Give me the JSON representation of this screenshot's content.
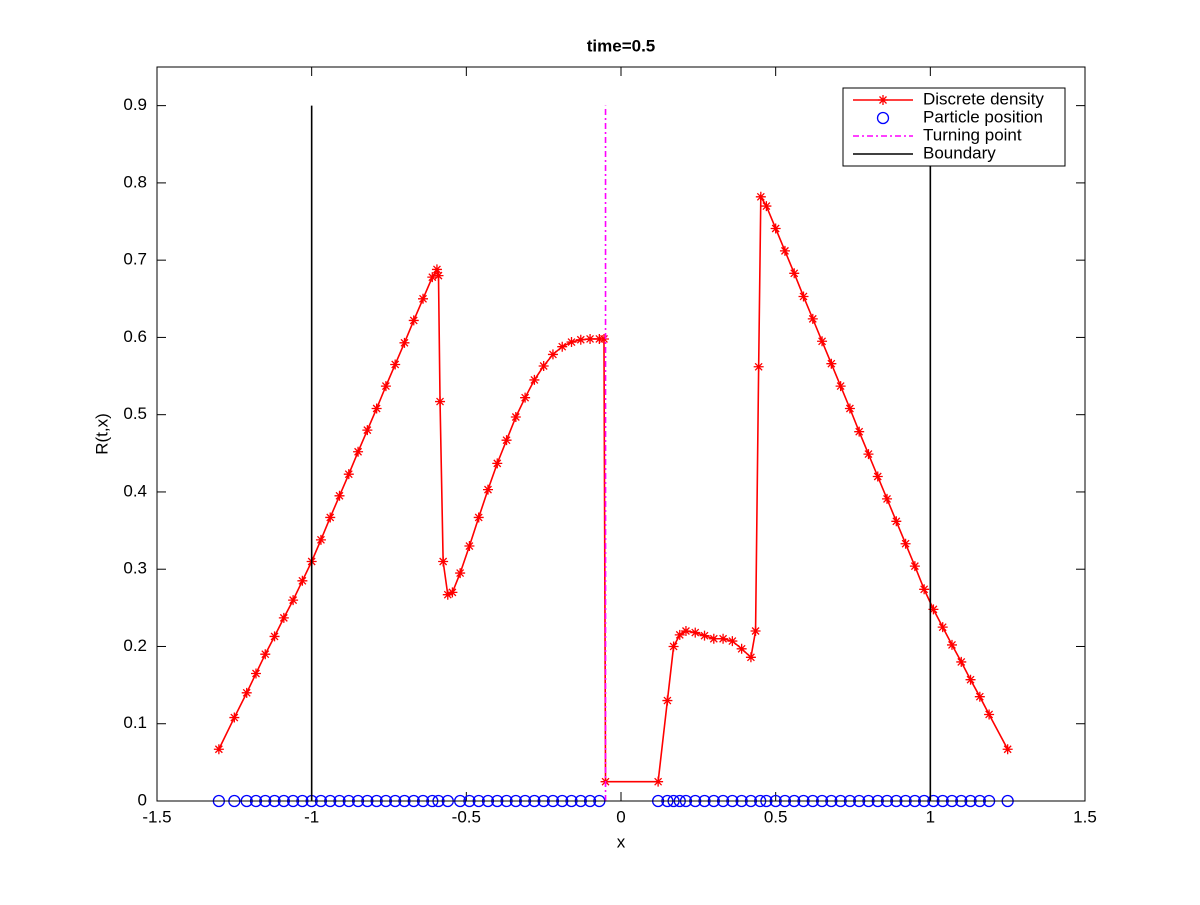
{
  "chart_data": {
    "type": "line",
    "title": "time=0.5",
    "x_label": "x",
    "y_label": "R(t,x)",
    "xlim": [
      -1.5,
      1.5
    ],
    "xticks": [
      -1.5,
      -1,
      -0.5,
      0,
      0.5,
      1,
      1.5
    ],
    "ylim": [
      0,
      0.95
    ],
    "yticks": [
      0,
      0.1,
      0.2,
      0.3,
      0.4,
      0.5,
      0.6,
      0.7,
      0.8,
      0.9
    ],
    "legend": "upper right",
    "grid": false,
    "series": [
      {
        "name": "Discrete density",
        "color": "#ff0000",
        "marker": "star",
        "linestyle": "solid",
        "x": [
          -1.3,
          -1.25,
          -1.21,
          -1.18,
          -1.15,
          -1.12,
          -1.09,
          -1.06,
          -1.03,
          -1.0,
          -0.97,
          -0.94,
          -0.91,
          -0.88,
          -0.85,
          -0.82,
          -0.79,
          -0.76,
          -0.73,
          -0.7,
          -0.67,
          -0.64,
          -0.61,
          -0.595,
          -0.59,
          -0.585,
          -0.575,
          -0.56,
          -0.545,
          -0.52,
          -0.49,
          -0.46,
          -0.43,
          -0.4,
          -0.37,
          -0.34,
          -0.31,
          -0.28,
          -0.25,
          -0.22,
          -0.19,
          -0.16,
          -0.13,
          -0.1,
          -0.07,
          -0.055,
          -0.05,
          0.12,
          0.15,
          0.17,
          0.19,
          0.21,
          0.24,
          0.27,
          0.3,
          0.33,
          0.36,
          0.39,
          0.42,
          0.435,
          0.445,
          0.452,
          0.47,
          0.5,
          0.53,
          0.56,
          0.59,
          0.62,
          0.65,
          0.68,
          0.71,
          0.74,
          0.77,
          0.8,
          0.83,
          0.86,
          0.89,
          0.92,
          0.95,
          0.98,
          1.01,
          1.04,
          1.07,
          1.1,
          1.13,
          1.16,
          1.19,
          1.25
        ],
        "values": [
          0.067,
          0.108,
          0.14,
          0.165,
          0.19,
          0.213,
          0.237,
          0.26,
          0.285,
          0.31,
          0.338,
          0.367,
          0.395,
          0.423,
          0.452,
          0.48,
          0.508,
          0.537,
          0.565,
          0.593,
          0.622,
          0.65,
          0.678,
          0.688,
          0.68,
          0.517,
          0.31,
          0.267,
          0.27,
          0.295,
          0.33,
          0.367,
          0.403,
          0.437,
          0.467,
          0.497,
          0.522,
          0.545,
          0.563,
          0.578,
          0.588,
          0.594,
          0.597,
          0.598,
          0.598,
          0.598,
          0.025,
          0.025,
          0.13,
          0.2,
          0.215,
          0.22,
          0.218,
          0.214,
          0.21,
          0.21,
          0.207,
          0.197,
          0.186,
          0.22,
          0.562,
          0.782,
          0.77,
          0.741,
          0.712,
          0.683,
          0.653,
          0.624,
          0.595,
          0.566,
          0.537,
          0.508,
          0.478,
          0.449,
          0.42,
          0.391,
          0.362,
          0.333,
          0.304,
          0.274,
          0.248,
          0.225,
          0.202,
          0.18,
          0.157,
          0.135,
          0.112,
          0.067
        ]
      },
      {
        "name": "Particle position",
        "color": "#0000ff",
        "marker": "circle",
        "linestyle": "none",
        "x": [
          -1.3,
          -1.25,
          -1.21,
          -1.18,
          -1.15,
          -1.12,
          -1.09,
          -1.06,
          -1.03,
          -1.0,
          -0.97,
          -0.94,
          -0.91,
          -0.88,
          -0.85,
          -0.82,
          -0.79,
          -0.76,
          -0.73,
          -0.7,
          -0.67,
          -0.64,
          -0.61,
          -0.59,
          -0.56,
          -0.52,
          -0.49,
          -0.46,
          -0.43,
          -0.4,
          -0.37,
          -0.34,
          -0.31,
          -0.28,
          -0.25,
          -0.22,
          -0.19,
          -0.16,
          -0.13,
          -0.1,
          -0.07,
          0.12,
          0.15,
          0.17,
          0.19,
          0.21,
          0.24,
          0.27,
          0.3,
          0.33,
          0.36,
          0.39,
          0.42,
          0.45,
          0.47,
          0.5,
          0.53,
          0.56,
          0.59,
          0.62,
          0.65,
          0.68,
          0.71,
          0.74,
          0.77,
          0.8,
          0.83,
          0.86,
          0.89,
          0.92,
          0.95,
          0.98,
          1.01,
          1.04,
          1.07,
          1.1,
          1.13,
          1.16,
          1.19,
          1.25
        ],
        "values": [
          0,
          0,
          0,
          0,
          0,
          0,
          0,
          0,
          0,
          0,
          0,
          0,
          0,
          0,
          0,
          0,
          0,
          0,
          0,
          0,
          0,
          0,
          0,
          0,
          0,
          0,
          0,
          0,
          0,
          0,
          0,
          0,
          0,
          0,
          0,
          0,
          0,
          0,
          0,
          0,
          0,
          0,
          0,
          0,
          0,
          0,
          0,
          0,
          0,
          0,
          0,
          0,
          0,
          0,
          0,
          0,
          0,
          0,
          0,
          0,
          0,
          0,
          0,
          0,
          0,
          0,
          0,
          0,
          0,
          0,
          0,
          0,
          0,
          0,
          0,
          0,
          0,
          0,
          0,
          0
        ]
      },
      {
        "name": "Turning point",
        "color": "#ff00ff",
        "marker": "none",
        "linestyle": "dashdot",
        "x": [
          -0.05,
          -0.05
        ],
        "values": [
          0,
          0.9
        ]
      },
      {
        "name": "Boundary",
        "color": "#000000",
        "marker": "none",
        "linestyle": "solid",
        "x": [
          -1,
          -1,
          null,
          1,
          1
        ],
        "values": [
          0,
          0.9,
          null,
          0,
          0.9
        ]
      }
    ]
  }
}
